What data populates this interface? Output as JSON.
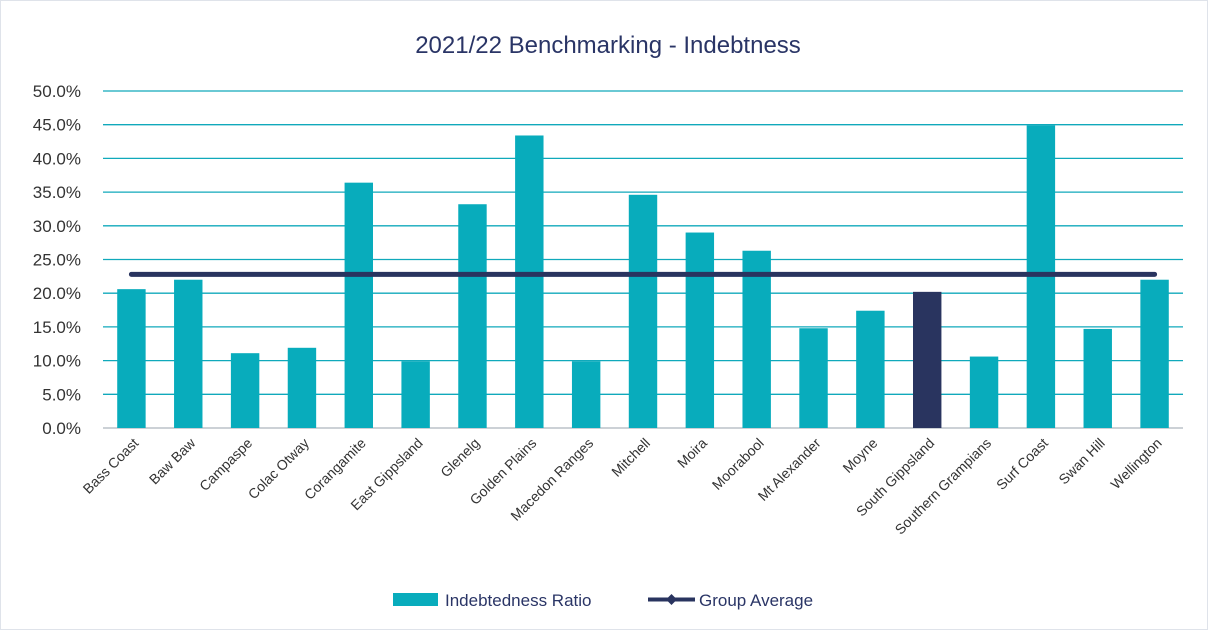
{
  "chart_data": {
    "type": "bar",
    "title": "2021/22 Benchmarking - Indebtness",
    "categories": [
      "Bass Coast",
      "Baw Baw",
      "Campaspe",
      "Colac Otway",
      "Corangamite",
      "East Gippsland",
      "Glenelg",
      "Golden Plains",
      "Macedon Ranges",
      "Mitchell",
      "Moira",
      "Moorabool",
      "Mt Alexander",
      "Moyne",
      "South Gippsland",
      "Southern Grampians",
      "Surf Coast",
      "Swan Hill",
      "Wellington"
    ],
    "series": [
      {
        "name": "Indebtedness Ratio",
        "type": "bar",
        "values": [
          20.6,
          22.0,
          11.1,
          11.9,
          36.4,
          9.9,
          33.2,
          43.4,
          9.9,
          34.6,
          29.0,
          26.3,
          14.8,
          17.4,
          20.2,
          10.6,
          44.9,
          14.7,
          22.0
        ],
        "color": "#08acbc",
        "highlight_index": 14,
        "highlight_color": "#29345f"
      },
      {
        "name": "Group Average",
        "type": "line",
        "value": 22.8,
        "color": "#29345f"
      }
    ],
    "y_ticks": [
      "50.0%",
      "45.0%",
      "40.0%",
      "35.0%",
      "30.0%",
      "25.0%",
      "20.0%",
      "15.0%",
      "10.0%",
      "5.0%",
      "0.0%"
    ],
    "ylim": [
      0,
      50
    ],
    "y_step": 5,
    "xlabel": "",
    "ylabel": "",
    "grid": true,
    "legend_position": "bottom"
  }
}
